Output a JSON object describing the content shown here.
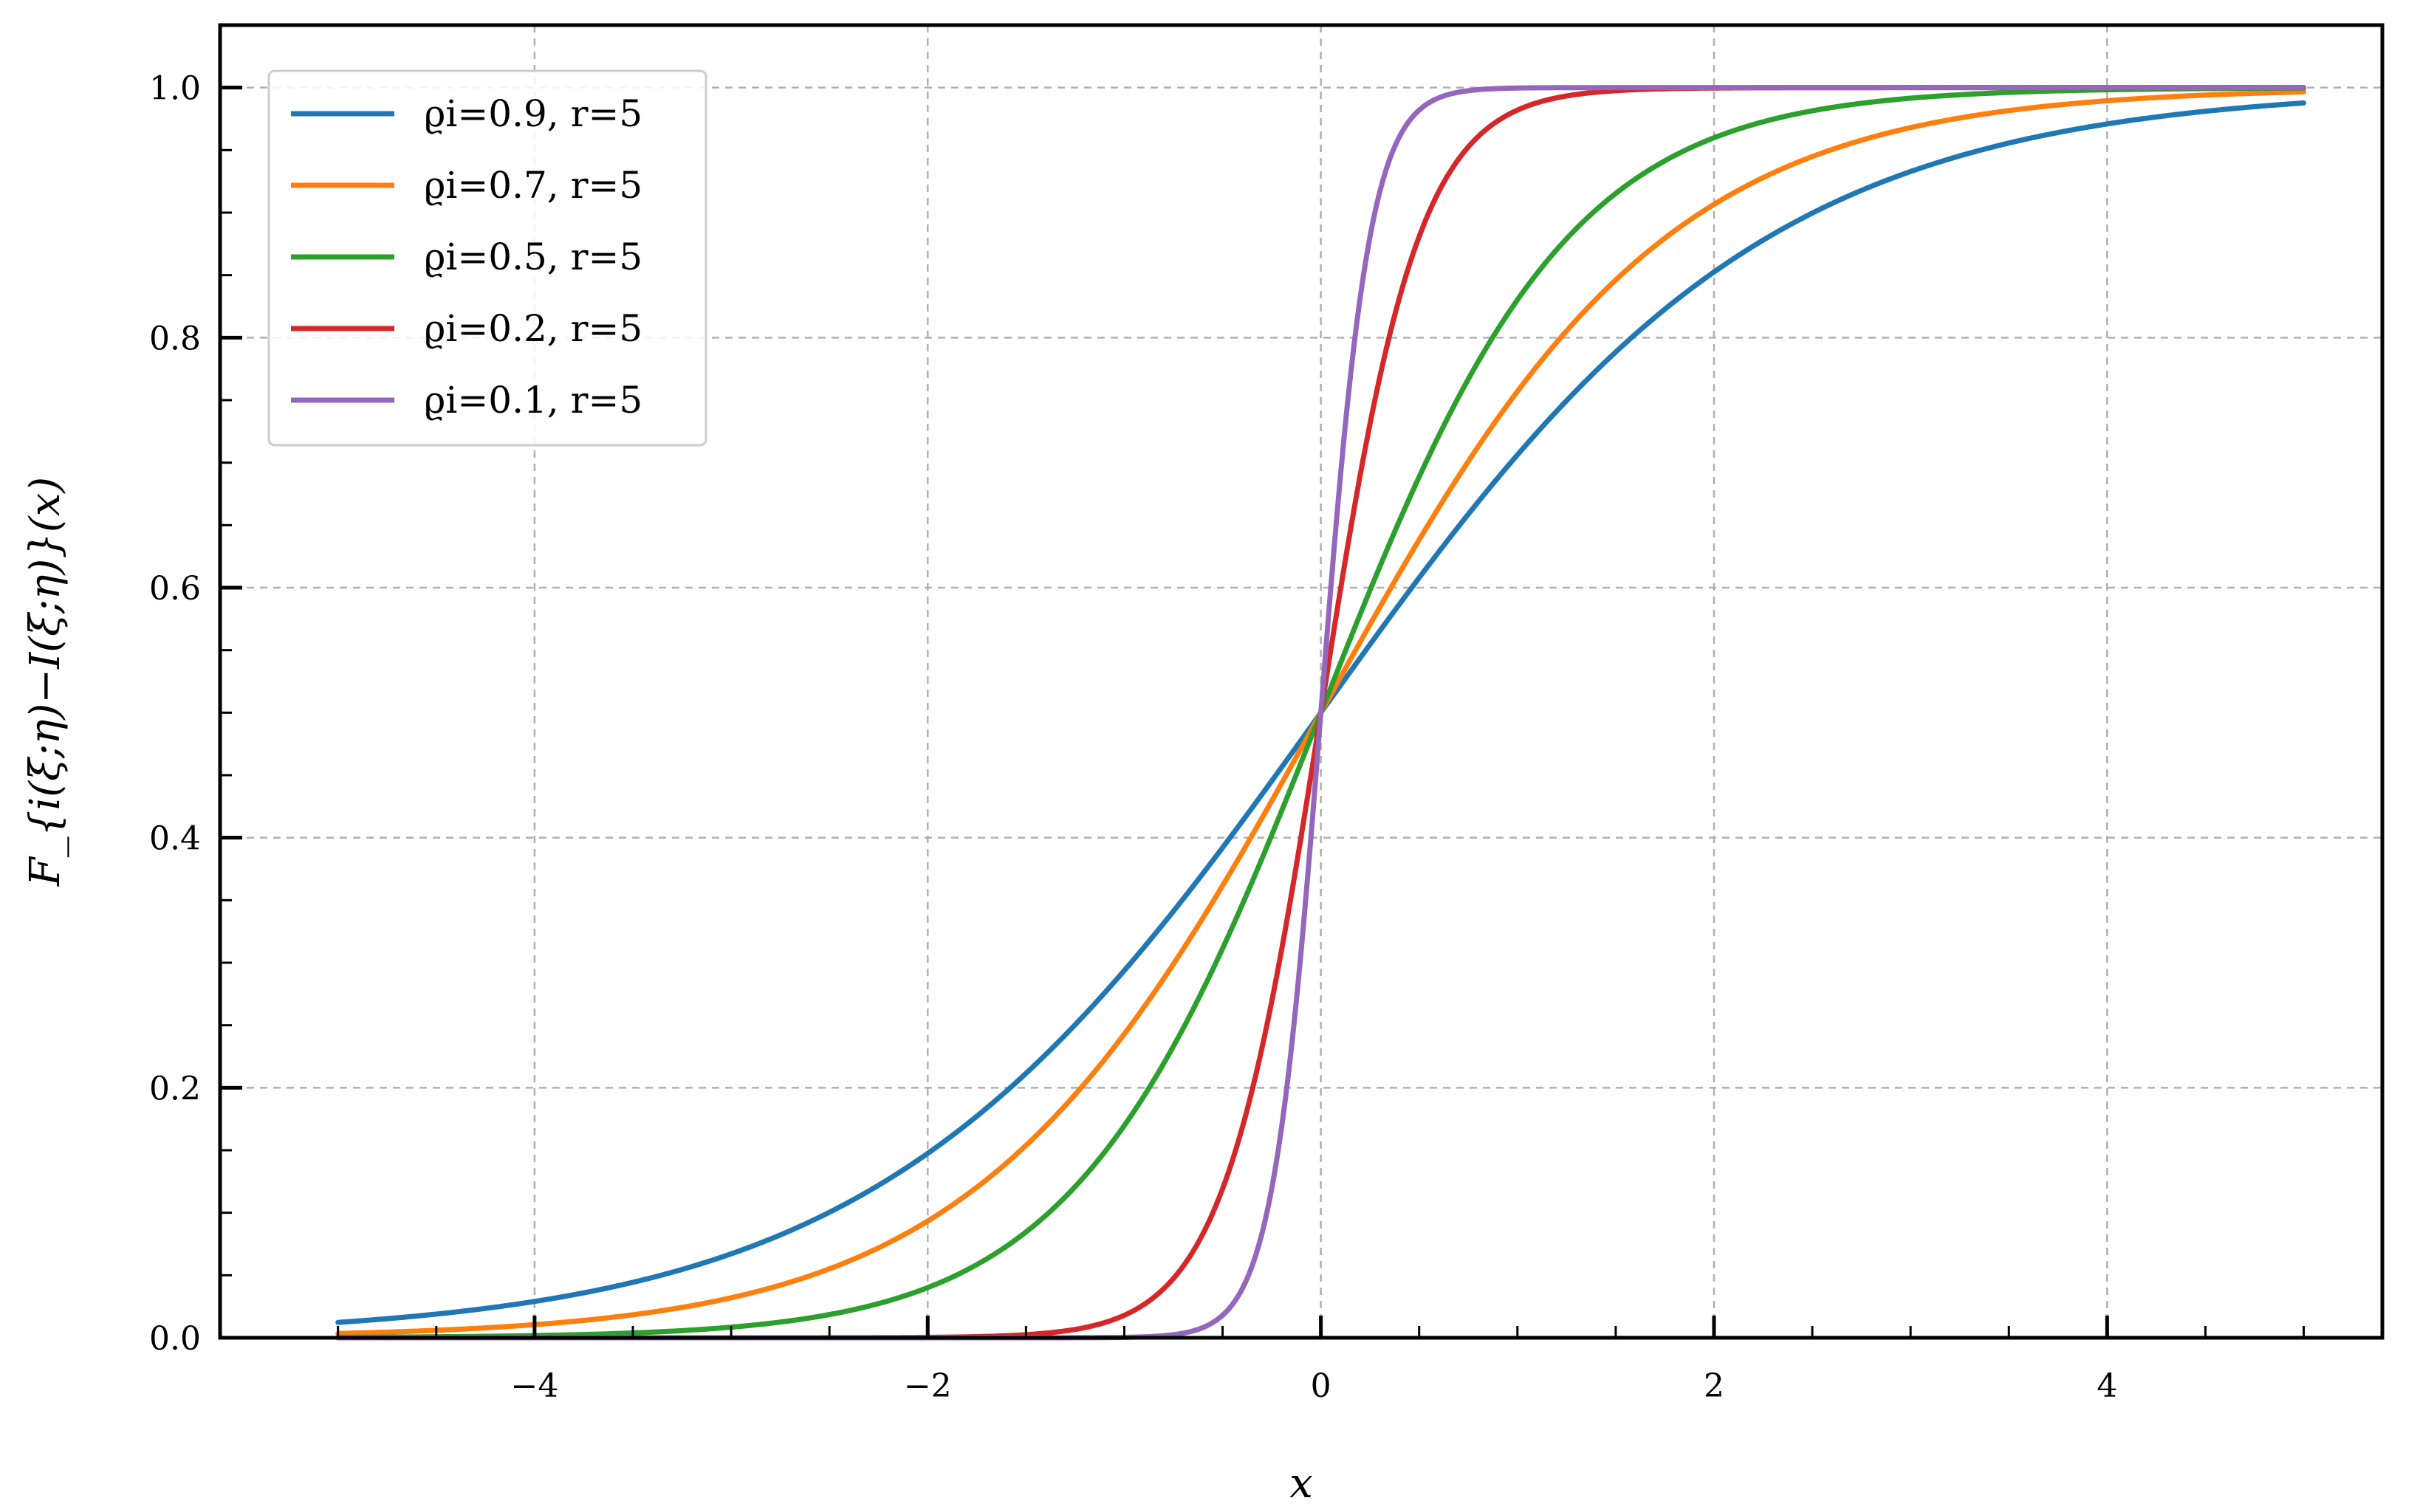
{
  "chart_data": {
    "type": "line",
    "xlabel": "x",
    "ylabel": "F_{i(ξ;η)−I(ξ;η)}(x)",
    "xlim": [
      -5.6,
      5.4
    ],
    "ylim": [
      0.0,
      1.05
    ],
    "x_ticks": [
      -4,
      -2,
      0,
      2,
      4
    ],
    "x_tick_labels": [
      "−4",
      "−2",
      "0",
      "2",
      "4"
    ],
    "y_ticks": [
      0.0,
      0.2,
      0.4,
      0.6,
      0.8,
      1.0
    ],
    "y_tick_labels": [
      "0.0",
      "0.2",
      "0.4",
      "0.6",
      "0.8",
      "1.0"
    ],
    "grid": true,
    "legend_position": "top-left",
    "x_range": [
      -5,
      5
    ],
    "series": [
      {
        "name": "ϱi=0.9, r=5",
        "color": "#1f77b4",
        "scale": 1.14
      },
      {
        "name": "ϱi=0.7, r=5",
        "color": "#ff7f0e",
        "scale": 0.88
      },
      {
        "name": "ϱi=0.5, r=5",
        "color": "#2ca02c",
        "scale": 0.63
      },
      {
        "name": "ϱi=0.2, r=5",
        "color": "#d62728",
        "scale": 0.25
      },
      {
        "name": "ϱi=0.1, r=5",
        "color": "#9467bd",
        "scale": 0.125
      }
    ],
    "sample_points": {
      "x": [
        -5,
        -4,
        -3,
        -2,
        -1,
        0,
        1,
        2,
        3,
        4,
        5
      ],
      "values": [
        [
          0.012,
          0.029,
          0.067,
          0.146,
          0.29,
          0.5,
          0.71,
          0.854,
          0.933,
          0.971,
          0.988
        ],
        [
          0.003,
          0.011,
          0.033,
          0.094,
          0.242,
          0.5,
          0.758,
          0.906,
          0.967,
          0.989,
          0.997
        ],
        [
          0.0004,
          0.002,
          0.008,
          0.041,
          0.169,
          0.5,
          0.831,
          0.959,
          0.992,
          0.998,
          1.0
        ],
        [
          0.0,
          0.0,
          0.0,
          0.0,
          0.018,
          0.5,
          0.982,
          1.0,
          1.0,
          1.0,
          1.0
        ],
        [
          0.0,
          0.0,
          0.0,
          0.0,
          0.0,
          0.5,
          1.0,
          1.0,
          1.0,
          1.0,
          1.0
        ]
      ]
    }
  }
}
